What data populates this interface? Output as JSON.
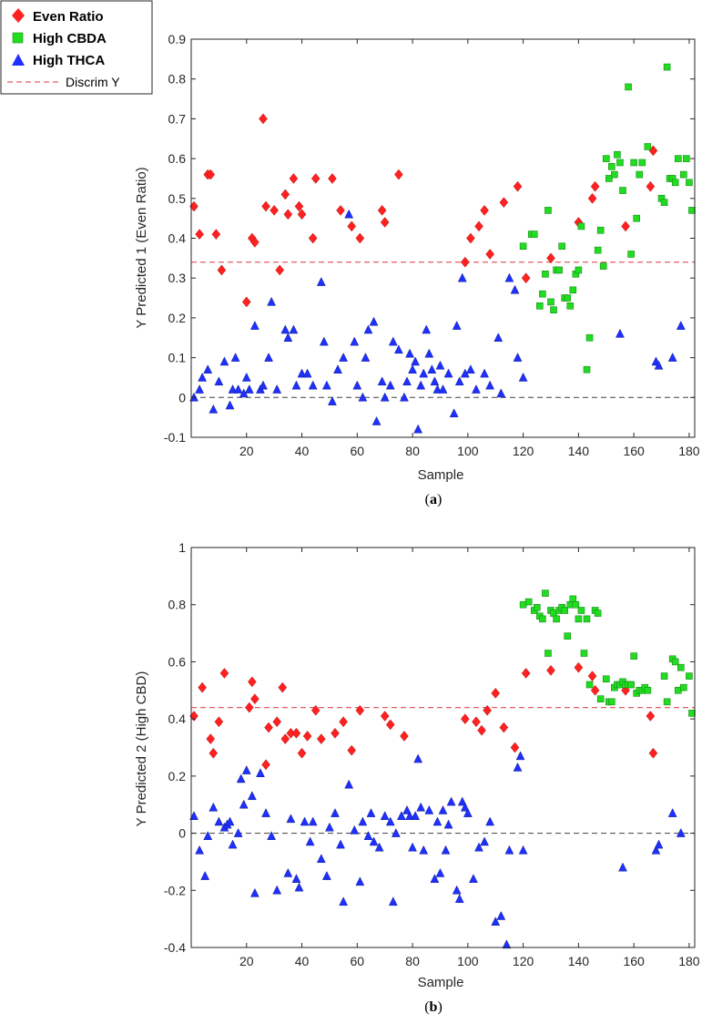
{
  "legend": {
    "entries": [
      {
        "label": "Even Ratio",
        "marker": "diamond",
        "color": "#ff2020"
      },
      {
        "label": "High CBDA",
        "marker": "square",
        "color": "#20dd20"
      },
      {
        "label": "High THCA",
        "marker": "triangle",
        "color": "#1f2fff"
      },
      {
        "label": "Discrim Y",
        "marker": "dashed-line",
        "color": "#e06060"
      }
    ]
  },
  "chart_data": [
    {
      "type": "scatter",
      "panel": "a",
      "caption_letter": "a",
      "xlabel": "Sample",
      "ylabel": "Y Predicted 1 (Even Ratio)",
      "xlim": [
        0,
        182
      ],
      "ylim": [
        -0.1,
        0.9
      ],
      "xticks": [
        20,
        40,
        60,
        80,
        100,
        120,
        140,
        160,
        180
      ],
      "yticks": [
        -0.1,
        0,
        0.1,
        0.2,
        0.3,
        0.4,
        0.5,
        0.6,
        0.7,
        0.8,
        0.9
      ],
      "ytick_labels": [
        "-0.1",
        "0",
        "0.1",
        "0.2",
        "0.3",
        "0.4",
        "0.5",
        "0.6",
        "0.7",
        "0.8",
        "0.9"
      ],
      "discrim_y": 0.34,
      "zero_line": 0,
      "series": [
        {
          "name": "Even Ratio",
          "marker": "diamond",
          "color": "#ff2020",
          "x": [
            1,
            3,
            6,
            7,
            9,
            11,
            20,
            22,
            23,
            26,
            27,
            30,
            32,
            34,
            35,
            37,
            39,
            40,
            44,
            45,
            51,
            54,
            58,
            61,
            69,
            70,
            75,
            99,
            101,
            104,
            106,
            108,
            113,
            118,
            121,
            130,
            140,
            145,
            146,
            157,
            166,
            167
          ],
          "y": [
            0.48,
            0.41,
            0.56,
            0.56,
            0.41,
            0.32,
            0.24,
            0.4,
            0.39,
            0.7,
            0.48,
            0.47,
            0.32,
            0.51,
            0.46,
            0.55,
            0.48,
            0.46,
            0.4,
            0.55,
            0.55,
            0.47,
            0.43,
            0.4,
            0.47,
            0.44,
            0.56,
            0.34,
            0.4,
            0.43,
            0.47,
            0.36,
            0.49,
            0.53,
            0.3,
            0.35,
            0.44,
            0.5,
            0.53,
            0.43,
            0.53,
            0.62
          ]
        },
        {
          "name": "High CBDA",
          "marker": "square",
          "color": "#20dd20",
          "x": [
            120,
            123,
            124,
            126,
            127,
            128,
            129,
            130,
            131,
            132,
            133,
            134,
            135,
            136,
            137,
            138,
            139,
            140,
            141,
            143,
            144,
            147,
            148,
            149,
            150,
            151,
            152,
            153,
            154,
            155,
            156,
            158,
            159,
            160,
            161,
            162,
            163,
            165,
            170,
            171,
            172,
            173,
            174,
            175,
            176,
            178,
            179,
            180,
            181
          ],
          "y": [
            0.38,
            0.41,
            0.41,
            0.23,
            0.26,
            0.31,
            0.47,
            0.24,
            0.22,
            0.32,
            0.32,
            0.38,
            0.25,
            0.25,
            0.23,
            0.27,
            0.31,
            0.32,
            0.43,
            0.07,
            0.15,
            0.37,
            0.42,
            0.33,
            0.6,
            0.55,
            0.58,
            0.56,
            0.61,
            0.59,
            0.52,
            0.78,
            0.36,
            0.59,
            0.45,
            0.56,
            0.59,
            0.63,
            0.5,
            0.49,
            0.83,
            0.55,
            0.55,
            0.54,
            0.6,
            0.56,
            0.6,
            0.54,
            0.47
          ]
        },
        {
          "name": "High THCA",
          "marker": "triangle",
          "color": "#1f2fff",
          "x": [
            1,
            3,
            4,
            6,
            8,
            10,
            12,
            14,
            15,
            16,
            17,
            19,
            20,
            21,
            23,
            25,
            26,
            28,
            29,
            31,
            34,
            35,
            37,
            38,
            40,
            42,
            44,
            47,
            48,
            49,
            51,
            53,
            55,
            57,
            59,
            60,
            62,
            63,
            64,
            66,
            67,
            69,
            70,
            72,
            73,
            75,
            77,
            78,
            79,
            80,
            81,
            82,
            83,
            84,
            85,
            86,
            87,
            88,
            89,
            90,
            91,
            93,
            95,
            96,
            97,
            98,
            99,
            101,
            103,
            106,
            108,
            111,
            112,
            115,
            117,
            118,
            120,
            155,
            168,
            169,
            174,
            177
          ],
          "y": [
            0.0,
            0.02,
            0.05,
            0.07,
            -0.03,
            0.04,
            0.09,
            -0.02,
            0.02,
            0.1,
            0.02,
            0.01,
            0.05,
            0.02,
            0.18,
            0.02,
            0.03,
            0.1,
            0.24,
            0.02,
            0.17,
            0.15,
            0.17,
            0.03,
            0.06,
            0.06,
            0.03,
            0.29,
            0.14,
            0.03,
            -0.01,
            0.07,
            0.1,
            0.46,
            0.14,
            0.03,
            0.0,
            0.1,
            0.17,
            0.19,
            -0.06,
            0.04,
            0.0,
            0.03,
            0.14,
            0.12,
            0.0,
            0.04,
            0.11,
            0.07,
            0.09,
            -0.08,
            0.03,
            0.06,
            0.17,
            0.11,
            0.07,
            0.04,
            0.02,
            0.08,
            0.02,
            0.06,
            -0.04,
            0.18,
            0.04,
            0.3,
            0.06,
            0.07,
            0.02,
            0.06,
            0.03,
            0.15,
            0.01,
            0.3,
            0.27,
            0.1,
            0.05,
            0.16,
            0.09,
            0.08,
            0.1,
            0.18
          ]
        }
      ]
    },
    {
      "type": "scatter",
      "panel": "b",
      "caption_letter": "b",
      "xlabel": "Sample",
      "ylabel": "Y Predicted 2 (High CBD)",
      "xlim": [
        0,
        182
      ],
      "ylim": [
        -0.4,
        1.0
      ],
      "xticks": [
        20,
        40,
        60,
        80,
        100,
        120,
        140,
        160,
        180
      ],
      "yticks": [
        -0.4,
        -0.2,
        0,
        0.2,
        0.4,
        0.6,
        0.8,
        1.0
      ],
      "ytick_labels": [
        "-0.4",
        "-0.2",
        "0",
        "0.2",
        "0.4",
        "0.6",
        "0.8",
        "1"
      ],
      "discrim_y": 0.44,
      "zero_line": 0,
      "series": [
        {
          "name": "Even Ratio",
          "marker": "diamond",
          "color": "#ff2020",
          "x": [
            1,
            4,
            7,
            8,
            10,
            12,
            21,
            22,
            23,
            27,
            28,
            31,
            33,
            34,
            36,
            38,
            40,
            42,
            45,
            47,
            52,
            55,
            58,
            61,
            70,
            72,
            77,
            99,
            103,
            105,
            107,
            110,
            113,
            117,
            121,
            130,
            140,
            145,
            146,
            157,
            166,
            167
          ],
          "y": [
            0.41,
            0.51,
            0.33,
            0.28,
            0.39,
            0.56,
            0.44,
            0.53,
            0.47,
            0.24,
            0.37,
            0.39,
            0.51,
            0.33,
            0.35,
            0.35,
            0.28,
            0.34,
            0.43,
            0.33,
            0.35,
            0.39,
            0.29,
            0.43,
            0.41,
            0.38,
            0.34,
            0.4,
            0.39,
            0.36,
            0.43,
            0.49,
            0.37,
            0.3,
            0.56,
            0.57,
            0.58,
            0.55,
            0.5,
            0.5,
            0.41,
            0.28
          ]
        },
        {
          "name": "High CBDA",
          "marker": "square",
          "color": "#20dd20",
          "x": [
            120,
            122,
            124,
            125,
            126,
            127,
            128,
            129,
            130,
            131,
            132,
            133,
            134,
            135,
            136,
            137,
            138,
            139,
            140,
            141,
            142,
            143,
            144,
            146,
            147,
            148,
            150,
            151,
            152,
            153,
            154,
            155,
            156,
            157,
            158,
            159,
            160,
            161,
            162,
            163,
            164,
            165,
            171,
            172,
            174,
            175,
            176,
            177,
            178,
            180,
            181
          ],
          "y": [
            0.8,
            0.81,
            0.78,
            0.79,
            0.76,
            0.75,
            0.84,
            0.63,
            0.78,
            0.77,
            0.75,
            0.78,
            0.79,
            0.78,
            0.69,
            0.8,
            0.82,
            0.8,
            0.75,
            0.78,
            0.63,
            0.75,
            0.52,
            0.78,
            0.77,
            0.47,
            0.54,
            0.46,
            0.46,
            0.51,
            0.52,
            0.52,
            0.53,
            0.52,
            0.52,
            0.52,
            0.62,
            0.49,
            0.5,
            0.5,
            0.51,
            0.5,
            0.55,
            0.46,
            0.61,
            0.6,
            0.5,
            0.58,
            0.51,
            0.55,
            0.42
          ]
        },
        {
          "name": "High THCA",
          "marker": "triangle",
          "color": "#1f2fff",
          "x": [
            1,
            3,
            5,
            6,
            8,
            10,
            12,
            13,
            14,
            15,
            17,
            18,
            19,
            20,
            22,
            23,
            25,
            27,
            29,
            31,
            35,
            36,
            38,
            39,
            41,
            43,
            44,
            47,
            49,
            50,
            52,
            54,
            55,
            57,
            59,
            61,
            62,
            64,
            65,
            66,
            68,
            70,
            72,
            73,
            74,
            76,
            78,
            79,
            80,
            81,
            82,
            83,
            84,
            86,
            88,
            89,
            90,
            91,
            92,
            93,
            94,
            96,
            97,
            98,
            99,
            100,
            102,
            104,
            106,
            108,
            110,
            112,
            114,
            115,
            118,
            119,
            120,
            156,
            168,
            169,
            174,
            177
          ],
          "y": [
            0.06,
            -0.06,
            -0.15,
            -0.01,
            0.09,
            0.04,
            0.02,
            0.03,
            0.04,
            -0.04,
            0.0,
            0.19,
            0.1,
            0.22,
            0.13,
            -0.21,
            0.21,
            0.07,
            -0.01,
            -0.2,
            -0.14,
            0.05,
            -0.16,
            -0.19,
            0.04,
            -0.03,
            0.04,
            -0.09,
            -0.15,
            0.02,
            0.07,
            -0.04,
            -0.24,
            0.17,
            0.01,
            -0.17,
            0.04,
            -0.01,
            0.07,
            -0.03,
            -0.05,
            0.06,
            0.04,
            -0.24,
            0.0,
            0.06,
            0.08,
            0.06,
            -0.05,
            0.06,
            0.26,
            0.09,
            -0.06,
            0.08,
            -0.16,
            0.04,
            -0.14,
            0.08,
            -0.06,
            0.03,
            0.11,
            -0.2,
            -0.23,
            0.11,
            0.09,
            0.07,
            -0.16,
            -0.05,
            -0.03,
            0.04,
            -0.31,
            -0.29,
            -0.39,
            -0.06,
            0.23,
            0.27,
            -0.06,
            -0.12,
            -0.06,
            -0.04,
            0.07,
            0.0
          ]
        }
      ]
    }
  ]
}
